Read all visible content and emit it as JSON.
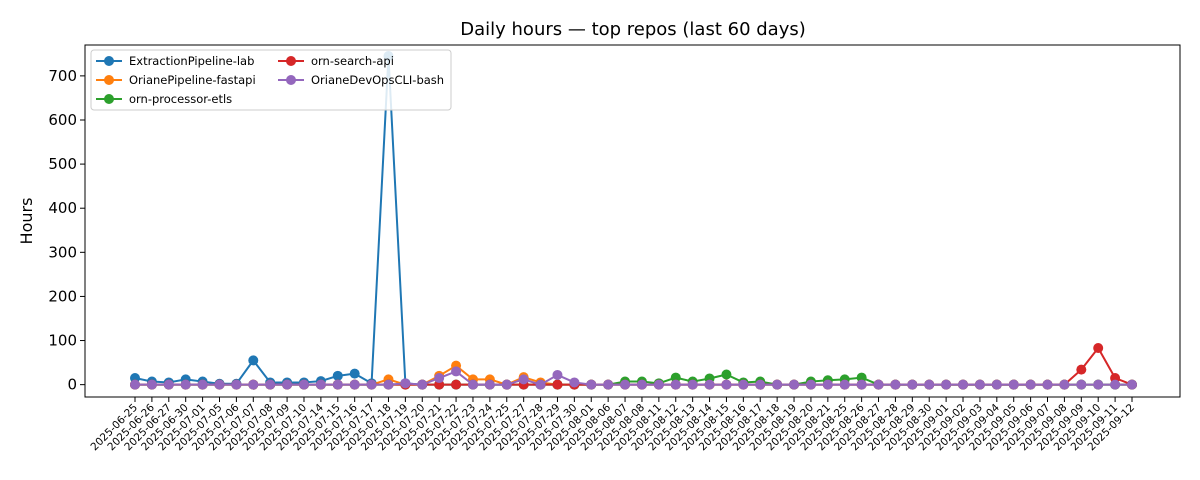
{
  "chart_data": {
    "type": "line",
    "title": "Daily hours — top repos (last 60 days)",
    "xlabel": "",
    "ylabel": "Hours",
    "ylim": [
      -28,
      770
    ],
    "yticks": [
      0,
      100,
      200,
      300,
      400,
      500,
      600,
      700
    ],
    "grid": false,
    "legend_position": "top-left",
    "x": [
      "2025-06-25",
      "2025-06-26",
      "2025-06-27",
      "2025-06-30",
      "2025-07-01",
      "2025-07-05",
      "2025-07-06",
      "2025-07-07",
      "2025-07-08",
      "2025-07-09",
      "2025-07-10",
      "2025-07-14",
      "2025-07-15",
      "2025-07-16",
      "2025-07-17",
      "2025-07-18",
      "2025-07-19",
      "2025-07-20",
      "2025-07-21",
      "2025-07-22",
      "2025-07-23",
      "2025-07-24",
      "2025-07-25",
      "2025-07-27",
      "2025-07-28",
      "2025-07-29",
      "2025-07-30",
      "2025-08-01",
      "2025-08-06",
      "2025-08-07",
      "2025-08-08",
      "2025-08-11",
      "2025-08-12",
      "2025-08-13",
      "2025-08-14",
      "2025-08-15",
      "2025-08-16",
      "2025-08-17",
      "2025-08-18",
      "2025-08-19",
      "2025-08-20",
      "2025-08-21",
      "2025-08-25",
      "2025-08-26",
      "2025-08-27",
      "2025-08-28",
      "2025-08-29",
      "2025-08-30",
      "2025-09-01",
      "2025-09-02",
      "2025-09-03",
      "2025-09-04",
      "2025-09-05",
      "2025-09-06",
      "2025-09-07",
      "2025-09-08",
      "2025-09-09",
      "2025-09-10",
      "2025-09-11",
      "2025-09-12"
    ],
    "series": [
      {
        "name": "ExtractionPipeline-lab",
        "color": "#1f77b4",
        "values": [
          15,
          7,
          5,
          12,
          7,
          2,
          2,
          55,
          5,
          5,
          5,
          8,
          20,
          25,
          3,
          745,
          3,
          0,
          0,
          0,
          0,
          0,
          0,
          0,
          0,
          0,
          0,
          0,
          0,
          0,
          0,
          0,
          0,
          0,
          0,
          0,
          0,
          0,
          0,
          0,
          0,
          0,
          0,
          0,
          0,
          0,
          0,
          0,
          0,
          0,
          0,
          0,
          0,
          0,
          0,
          0,
          0,
          0,
          0,
          0
        ]
      },
      {
        "name": "OrianePipeline-fastapi",
        "color": "#ff7f0e",
        "values": [
          0,
          0,
          0,
          0,
          0,
          0,
          0,
          0,
          0,
          0,
          0,
          0,
          0,
          0,
          0,
          12,
          0,
          0,
          20,
          43,
          12,
          12,
          0,
          17,
          5,
          0,
          0,
          0,
          0,
          0,
          0,
          0,
          0,
          0,
          0,
          0,
          0,
          0,
          0,
          0,
          0,
          0,
          0,
          0,
          0,
          0,
          0,
          0,
          0,
          0,
          0,
          0,
          0,
          0,
          0,
          0,
          0,
          0,
          0,
          0
        ]
      },
      {
        "name": "orn-processor-etls",
        "color": "#2ca02c",
        "values": [
          0,
          0,
          0,
          0,
          0,
          0,
          0,
          0,
          0,
          0,
          0,
          0,
          0,
          0,
          0,
          0,
          0,
          0,
          0,
          0,
          0,
          0,
          0,
          0,
          0,
          0,
          0,
          0,
          0,
          7,
          7,
          3,
          16,
          7,
          14,
          23,
          5,
          7,
          0,
          0,
          7,
          10,
          12,
          16,
          0,
          0,
          0,
          0,
          0,
          0,
          0,
          0,
          0,
          0,
          0,
          0,
          0,
          0,
          0,
          0
        ]
      },
      {
        "name": "orn-search-api",
        "color": "#d62728",
        "values": [
          0,
          0,
          0,
          0,
          0,
          0,
          0,
          0,
          0,
          0,
          0,
          0,
          0,
          0,
          0,
          0,
          0,
          0,
          0,
          0,
          0,
          0,
          0,
          0,
          0,
          0,
          0,
          0,
          0,
          0,
          0,
          0,
          0,
          0,
          0,
          0,
          0,
          0,
          0,
          0,
          0,
          0,
          0,
          0,
          0,
          0,
          0,
          0,
          0,
          0,
          0,
          0,
          0,
          0,
          0,
          0,
          34,
          83,
          15,
          0
        ]
      },
      {
        "name": "OrianeDevOpsCLI-bash",
        "color": "#9467bd",
        "values": [
          0,
          0,
          0,
          0,
          0,
          0,
          0,
          0,
          0,
          0,
          0,
          0,
          0,
          0,
          0,
          0,
          3,
          0,
          15,
          30,
          0,
          0,
          0,
          12,
          0,
          22,
          5,
          0,
          0,
          0,
          0,
          0,
          0,
          0,
          0,
          0,
          0,
          0,
          0,
          0,
          0,
          0,
          0,
          0,
          0,
          0,
          0,
          0,
          0,
          0,
          0,
          0,
          0,
          0,
          0,
          0,
          0,
          0,
          0,
          0
        ]
      }
    ]
  }
}
